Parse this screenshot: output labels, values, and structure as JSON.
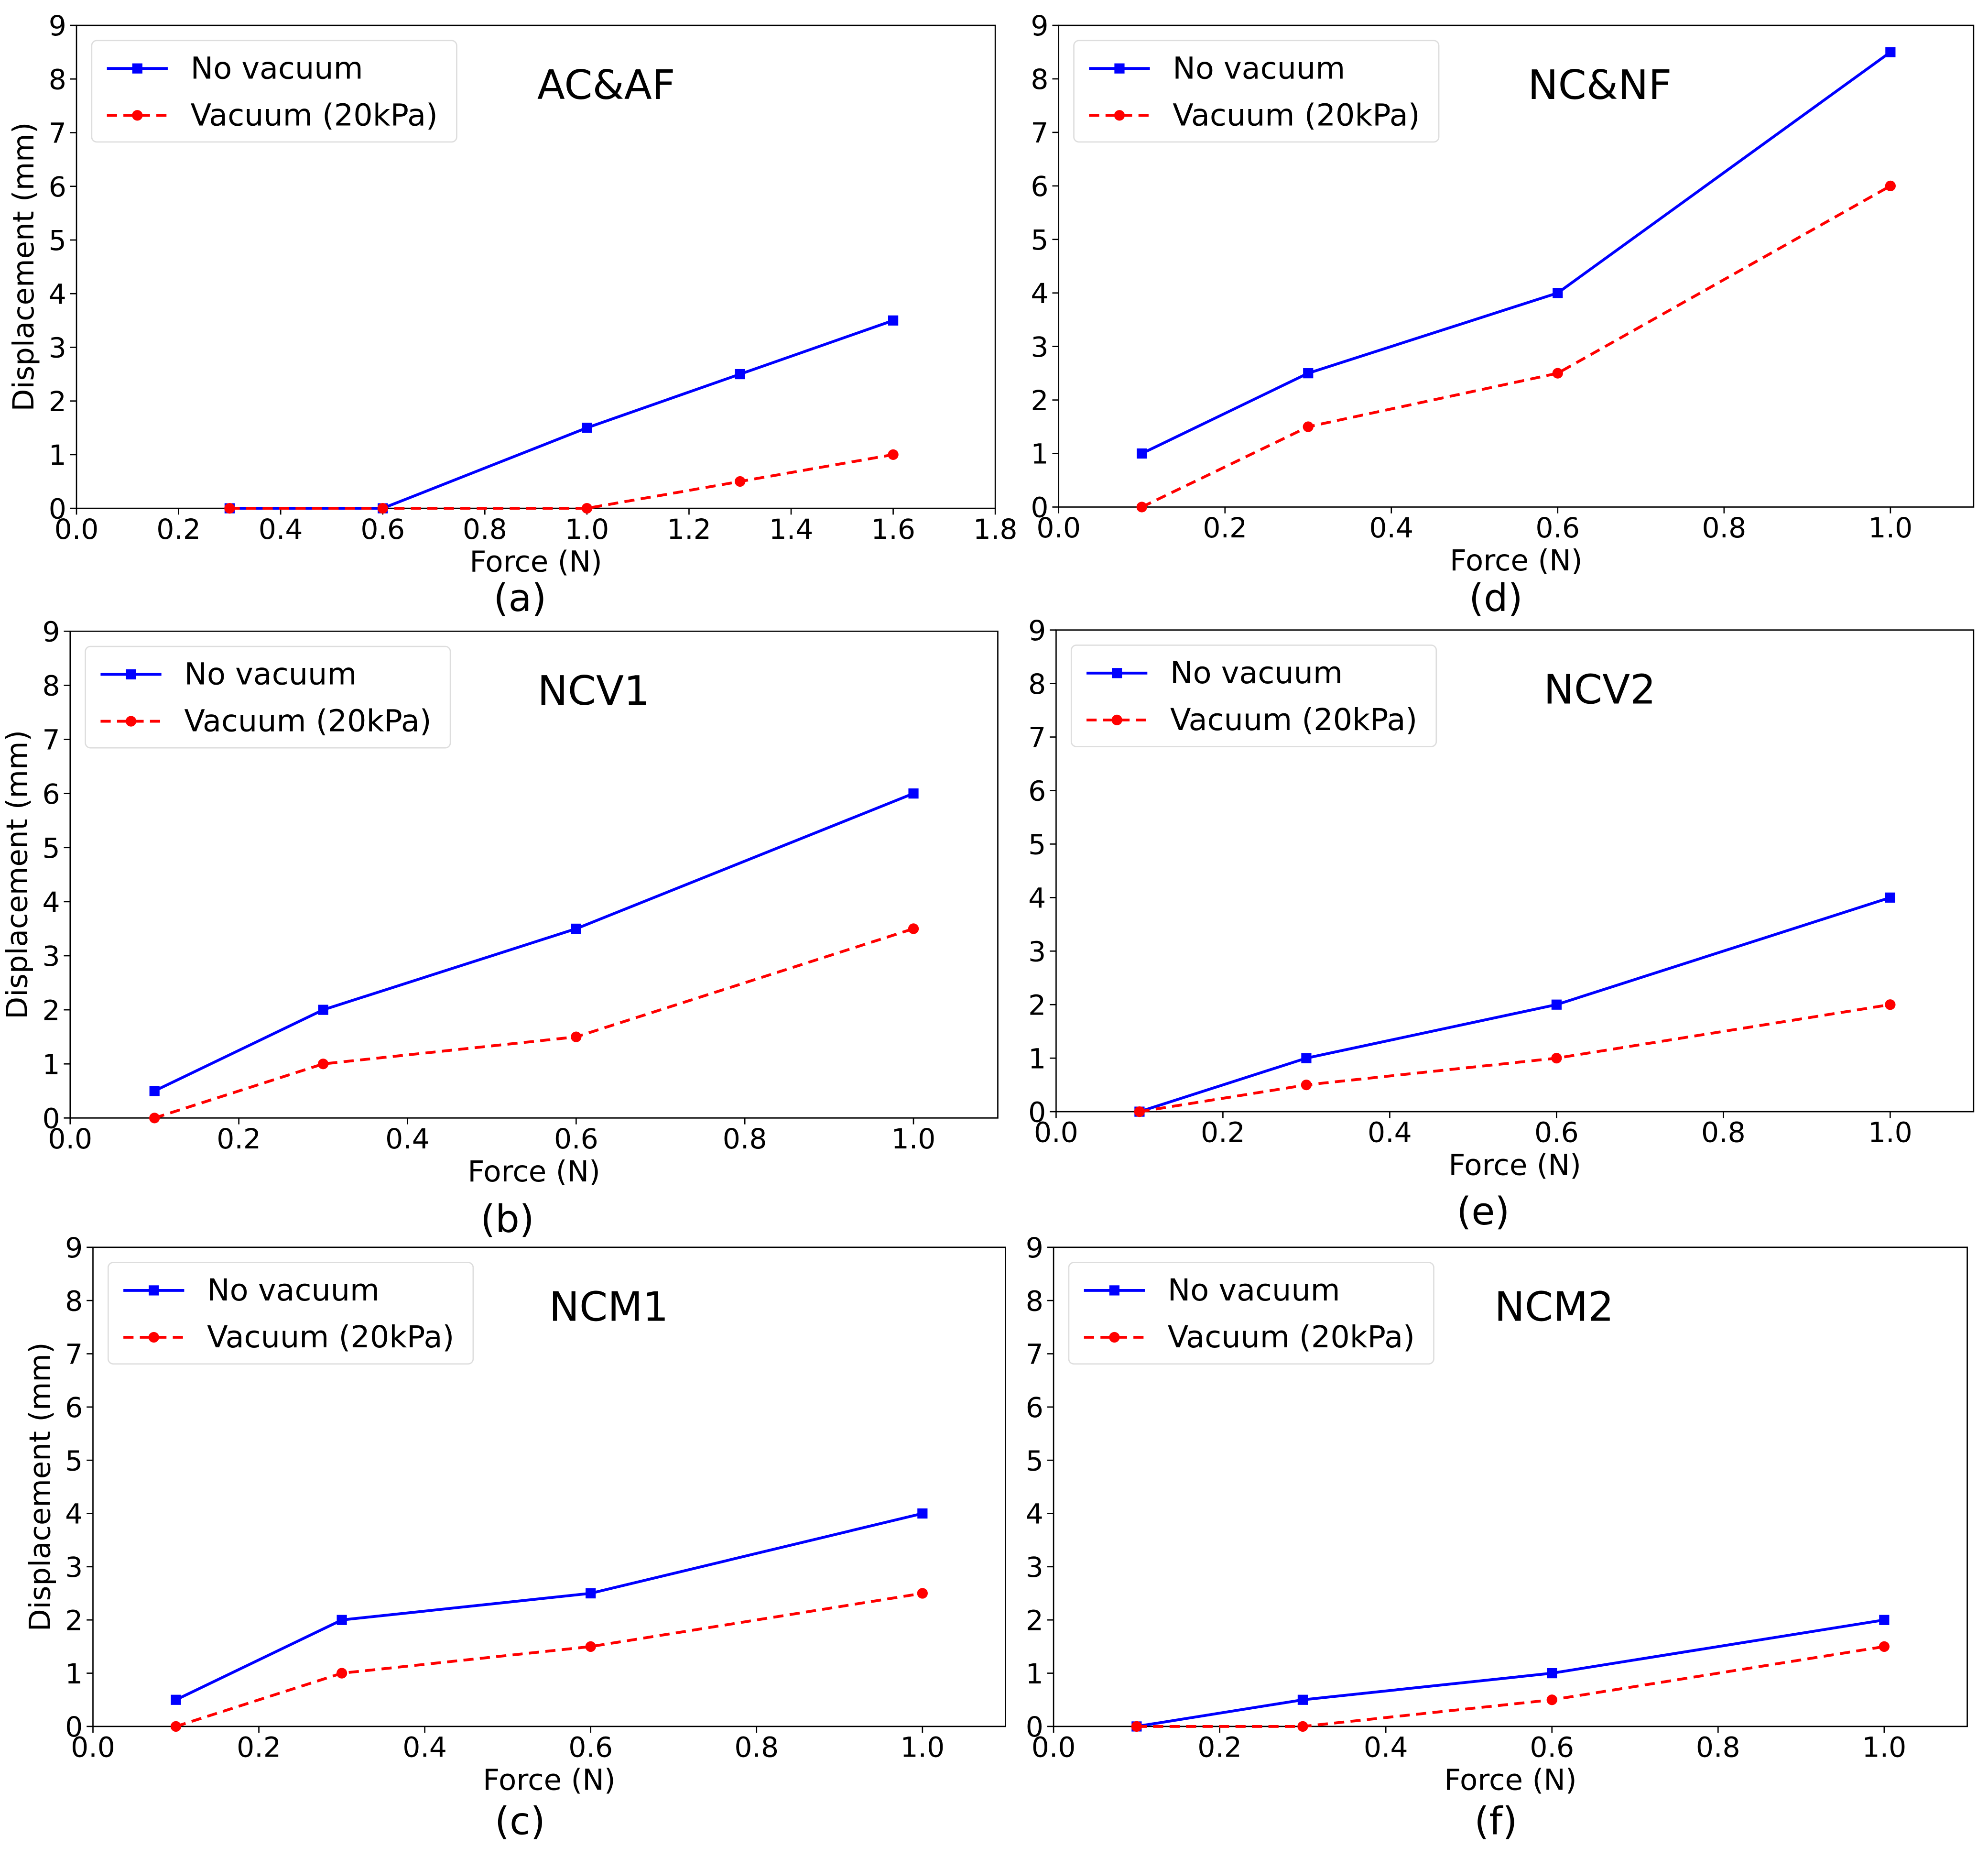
{
  "chart_data": [
    {
      "type": "line",
      "panel_label": "(a)",
      "title": "AC&AF",
      "xlabel": "Force (N)",
      "ylabel": "Displacement (mm)",
      "xlim": [
        0,
        1.8
      ],
      "ylim": [
        0,
        9
      ],
      "xticks": [
        "0.0",
        "0.2",
        "0.4",
        "0.6",
        "0.8",
        "1.0",
        "1.2",
        "1.4",
        "1.6",
        "1.8"
      ],
      "yticks": [
        "0",
        "1",
        "2",
        "3",
        "4",
        "5",
        "6",
        "7",
        "8",
        "9"
      ],
      "legend": "top-left",
      "x": [
        0.3,
        0.6,
        1.0,
        1.3,
        1.6
      ],
      "series": [
        {
          "name": "No vacuum",
          "color": "#0000ff",
          "style": "solid",
          "marker": "square",
          "values": [
            0,
            0,
            1.5,
            2.5,
            3.5
          ]
        },
        {
          "name": "Vacuum (20kPa)",
          "color": "#ff0000",
          "style": "dashed",
          "marker": "circle",
          "values": [
            0,
            0,
            0,
            0.5,
            1.0
          ]
        }
      ]
    },
    {
      "type": "line",
      "panel_label": "(d)",
      "title": "NC&NF",
      "xlabel": "Force (N)",
      "ylabel": "",
      "xlim": [
        0,
        1.1
      ],
      "ylim": [
        0,
        9
      ],
      "xticks": [
        "0.0",
        "0.2",
        "0.4",
        "0.6",
        "0.8",
        "1.0"
      ],
      "yticks": [
        "0",
        "1",
        "2",
        "3",
        "4",
        "5",
        "6",
        "7",
        "8",
        "9"
      ],
      "legend": "top-left",
      "x": [
        0.1,
        0.3,
        0.6,
        1.0
      ],
      "series": [
        {
          "name": "No vacuum",
          "color": "#0000ff",
          "style": "solid",
          "marker": "square",
          "values": [
            1,
            2.5,
            4,
            8.5
          ]
        },
        {
          "name": "Vacuum (20kPa)",
          "color": "#ff0000",
          "style": "dashed",
          "marker": "circle",
          "values": [
            0,
            1.5,
            2.5,
            6
          ]
        }
      ]
    },
    {
      "type": "line",
      "panel_label": "(b)",
      "title": "NCV1",
      "xlabel": "Force (N)",
      "ylabel": "Displacement (mm)",
      "xlim": [
        0,
        1.1
      ],
      "ylim": [
        0,
        9
      ],
      "xticks": [
        "0.0",
        "0.2",
        "0.4",
        "0.6",
        "0.8",
        "1.0"
      ],
      "yticks": [
        "0",
        "1",
        "2",
        "3",
        "4",
        "5",
        "6",
        "7",
        "8",
        "9"
      ],
      "legend": "top-left",
      "x": [
        0.1,
        0.3,
        0.6,
        1.0
      ],
      "series": [
        {
          "name": "No vacuum",
          "color": "#0000ff",
          "style": "solid",
          "marker": "square",
          "values": [
            0.5,
            2,
            3.5,
            6
          ]
        },
        {
          "name": "Vacuum (20kPa)",
          "color": "#ff0000",
          "style": "dashed",
          "marker": "circle",
          "values": [
            0,
            1,
            1.5,
            3.5
          ]
        }
      ]
    },
    {
      "type": "line",
      "panel_label": "(e)",
      "title": "NCV2",
      "xlabel": "Force (N)",
      "ylabel": "",
      "xlim": [
        0,
        1.1
      ],
      "ylim": [
        0,
        9
      ],
      "xticks": [
        "0.0",
        "0.2",
        "0.4",
        "0.6",
        "0.8",
        "1.0"
      ],
      "yticks": [
        "0",
        "1",
        "2",
        "3",
        "4",
        "5",
        "6",
        "7",
        "8",
        "9"
      ],
      "legend": "top-left",
      "x": [
        0.1,
        0.3,
        0.6,
        1.0
      ],
      "series": [
        {
          "name": "No vacuum",
          "color": "#0000ff",
          "style": "solid",
          "marker": "square",
          "values": [
            0,
            1,
            2,
            4
          ]
        },
        {
          "name": "Vacuum (20kPa)",
          "color": "#ff0000",
          "style": "dashed",
          "marker": "circle",
          "values": [
            0,
            0.5,
            1,
            2
          ]
        }
      ]
    },
    {
      "type": "line",
      "panel_label": "(c)",
      "title": "NCM1",
      "xlabel": "Force (N)",
      "ylabel": "Displacement (mm)",
      "xlim": [
        0,
        1.1
      ],
      "ylim": [
        0,
        9
      ],
      "xticks": [
        "0.0",
        "0.2",
        "0.4",
        "0.6",
        "0.8",
        "1.0"
      ],
      "yticks": [
        "0",
        "1",
        "2",
        "3",
        "4",
        "5",
        "6",
        "7",
        "8",
        "9"
      ],
      "legend": "top-left",
      "x": [
        0.1,
        0.3,
        0.6,
        1.0
      ],
      "series": [
        {
          "name": "No vacuum",
          "color": "#0000ff",
          "style": "solid",
          "marker": "square",
          "values": [
            0.5,
            2,
            2.5,
            4
          ]
        },
        {
          "name": "Vacuum (20kPa)",
          "color": "#ff0000",
          "style": "dashed",
          "marker": "circle",
          "values": [
            0,
            1,
            1.5,
            2.5
          ]
        }
      ]
    },
    {
      "type": "line",
      "panel_label": "(f)",
      "title": "NCM2",
      "xlabel": "Force (N)",
      "ylabel": "",
      "xlim": [
        0,
        1.1
      ],
      "ylim": [
        0,
        9
      ],
      "xticks": [
        "0.0",
        "0.2",
        "0.4",
        "0.6",
        "0.8",
        "1.0"
      ],
      "yticks": [
        "0",
        "1",
        "2",
        "3",
        "4",
        "5",
        "6",
        "7",
        "8",
        "9"
      ],
      "legend": "top-left",
      "x": [
        0.1,
        0.3,
        0.6,
        1.0
      ],
      "series": [
        {
          "name": "No vacuum",
          "color": "#0000ff",
          "style": "solid",
          "marker": "square",
          "values": [
            0,
            0.5,
            1,
            2
          ]
        },
        {
          "name": "Vacuum (20kPa)",
          "color": "#ff0000",
          "style": "dashed",
          "marker": "circle",
          "values": [
            0,
            0,
            0.5,
            1.5
          ]
        }
      ]
    }
  ]
}
